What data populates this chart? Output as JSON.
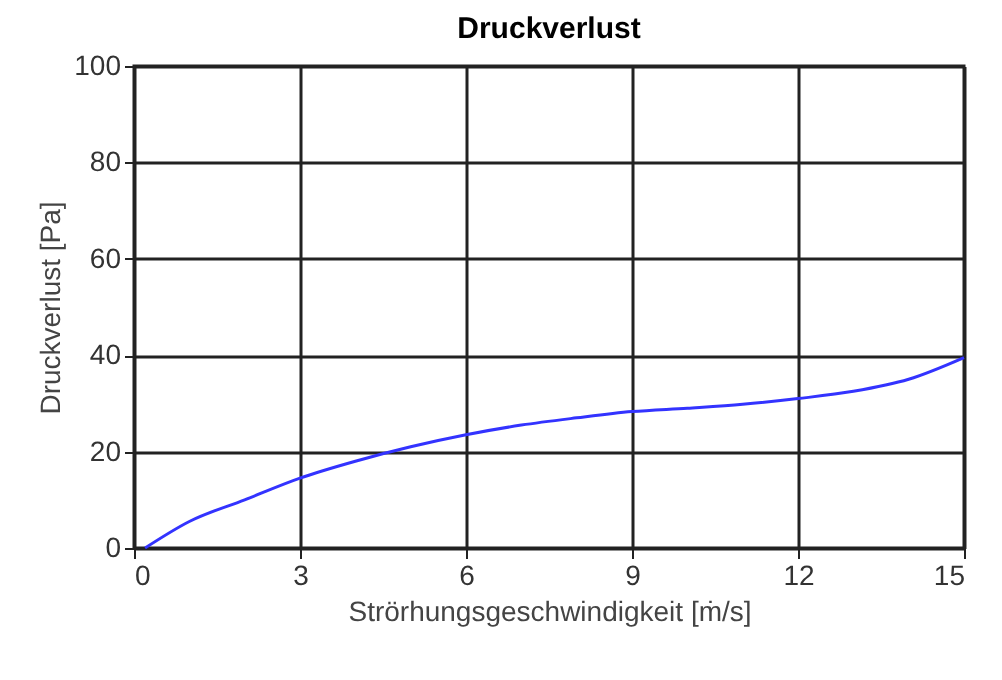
{
  "chart_data": {
    "type": "line",
    "title": "Druckverlust",
    "xlabel": "Strörhungsgeschwindigkeit [ṁ/s]",
    "ylabel": "Druckverlust [Pa]",
    "x": [
      0.2,
      1,
      2,
      3,
      4,
      5,
      6,
      7,
      8,
      9,
      10,
      11,
      12,
      13,
      14,
      15
    ],
    "series": [
      {
        "color": "#3333ff",
        "values": [
          0,
          5.5,
          10,
          14.5,
          18,
          21,
          23.5,
          25.5,
          27,
          28.3,
          29,
          29.8,
          31,
          32.5,
          35,
          39.5
        ]
      }
    ],
    "xlim": [
      0,
      15
    ],
    "xticks": [
      0,
      3,
      6,
      9,
      12,
      15
    ],
    "ylim": [
      0,
      100
    ],
    "yticks": [
      0,
      20,
      40,
      60,
      80,
      100
    ],
    "grid": true,
    "marker": "none",
    "line_style": "solid"
  }
}
